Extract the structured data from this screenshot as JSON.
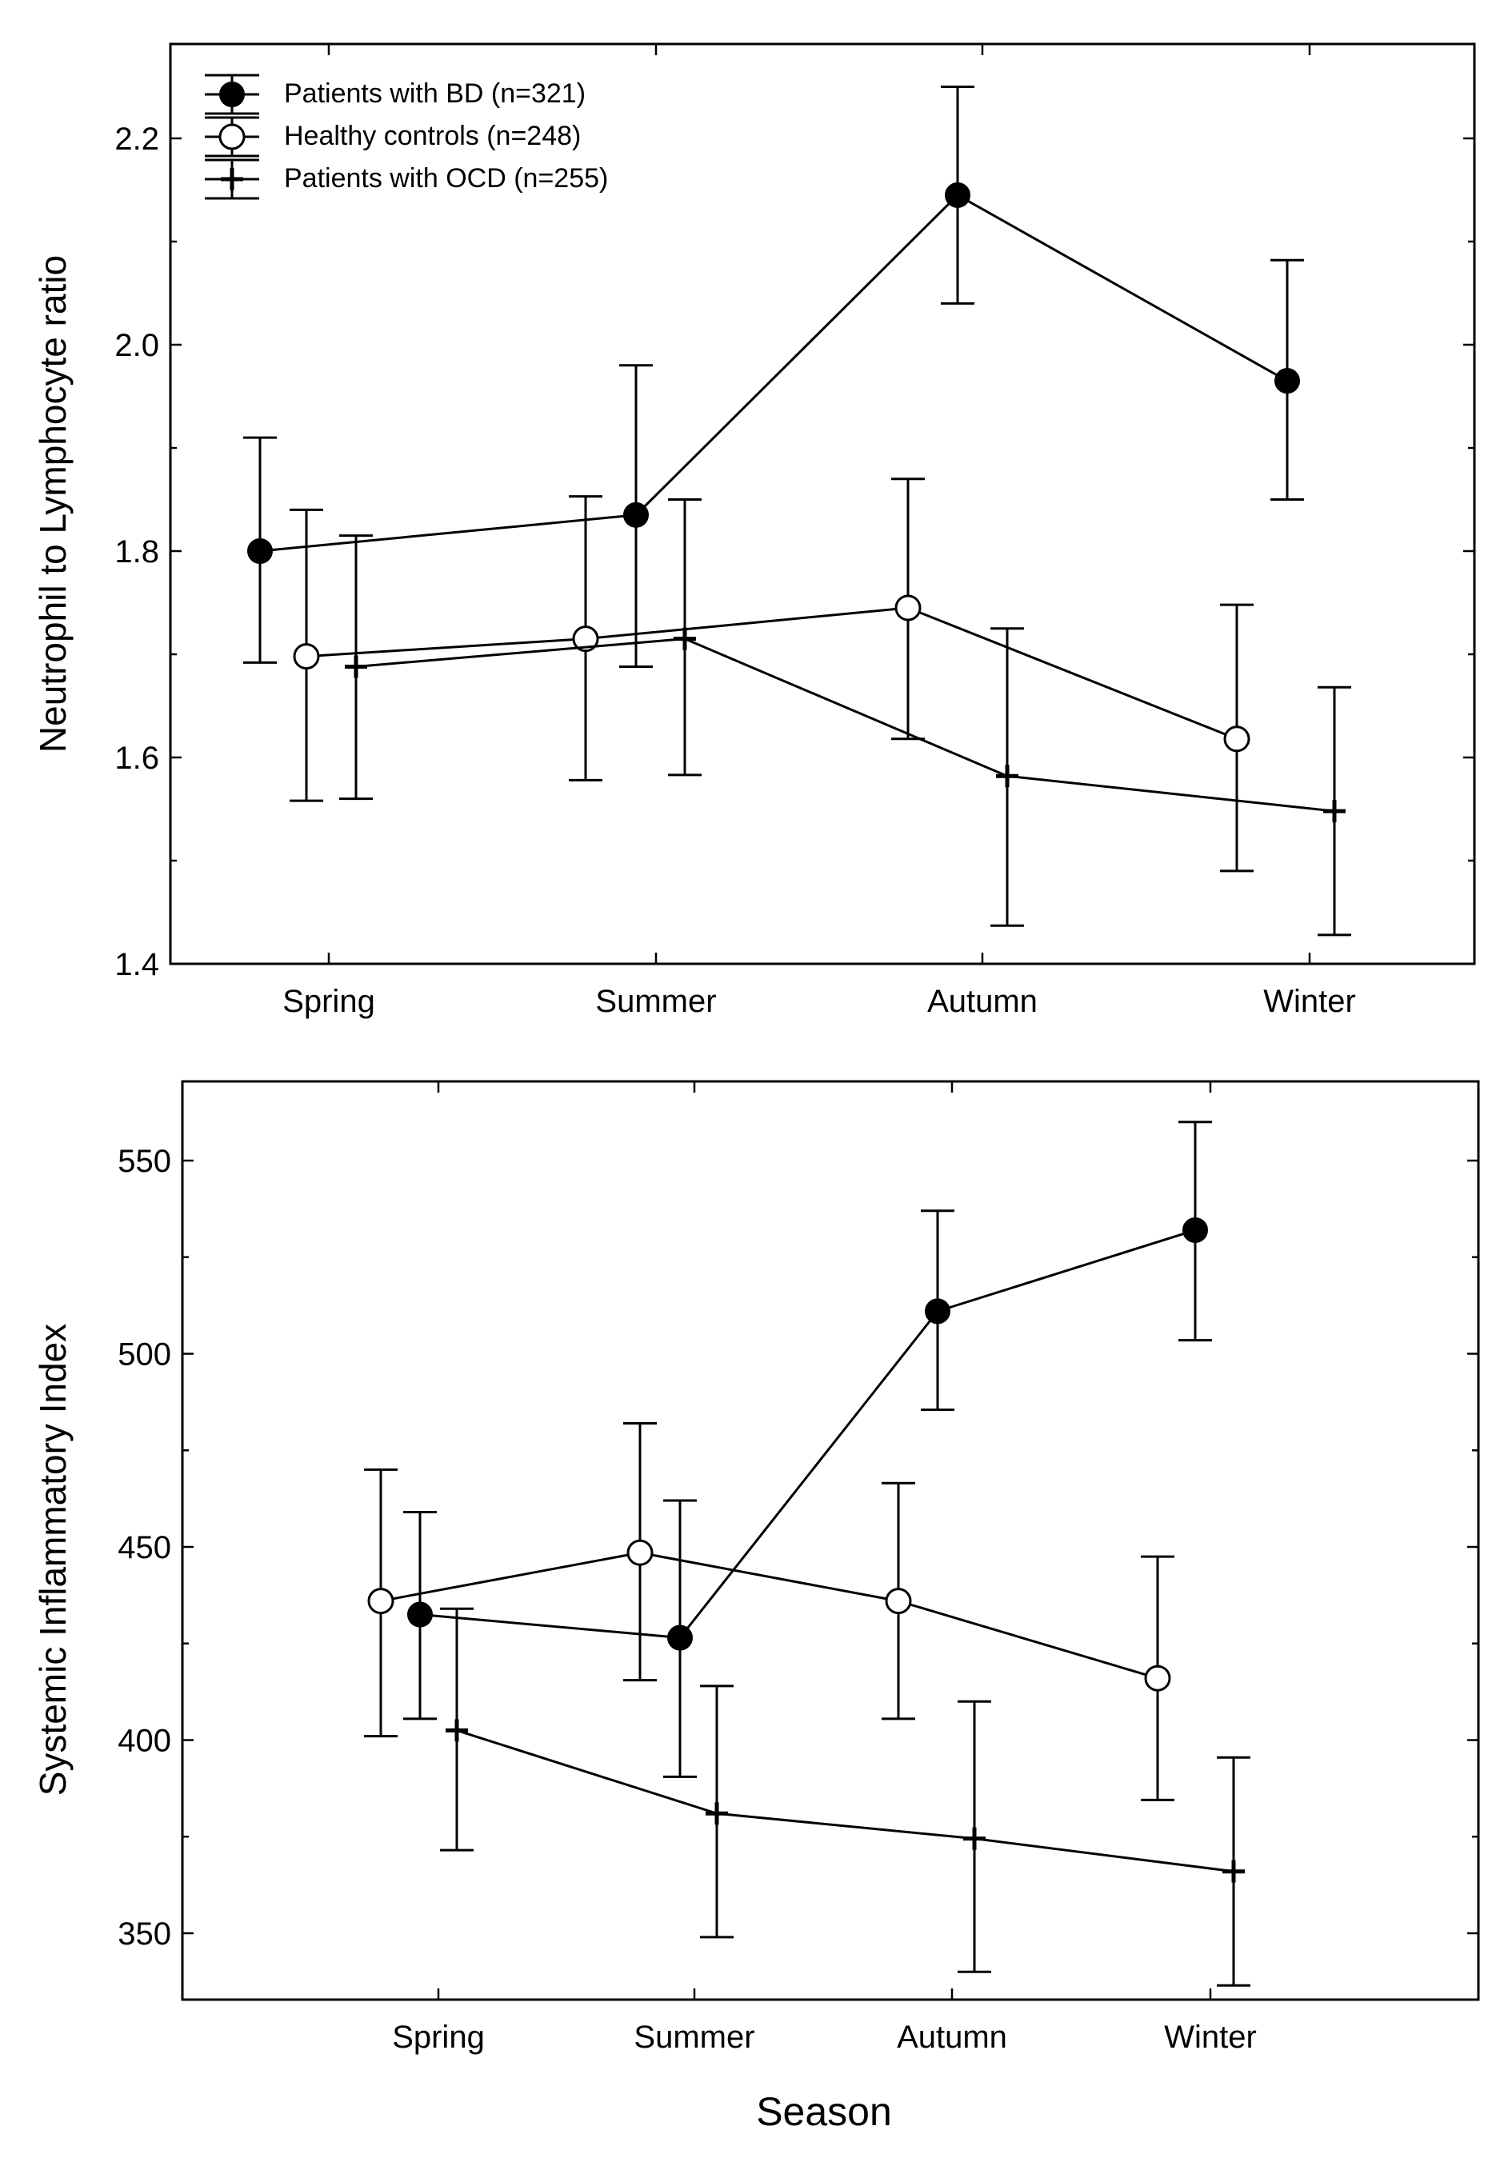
{
  "figure": {
    "xlabel": "Season"
  },
  "chart_data": [
    {
      "type": "line",
      "title": "",
      "xlabel": "",
      "ylabel": "Neutrophil to Lymphocyte ratio",
      "categories": [
        "Spring",
        "Summer",
        "Autumn",
        "Winter"
      ],
      "ylim": [
        1.4,
        2.3
      ],
      "yticks": [
        "1.4",
        "1.6",
        "1.8",
        "2.0",
        "2.2"
      ],
      "legend_position": "top-left",
      "series": [
        {
          "name": "Patients with BD (n=321)",
          "marker": "filled-circle",
          "values": [
            1.8,
            1.835,
            2.145,
            1.965
          ],
          "err_low": [
            1.692,
            1.688,
            2.04,
            1.85
          ],
          "err_high": [
            1.91,
            1.98,
            2.25,
            2.082
          ],
          "line_segments": [
            [
              0,
              1
            ],
            [
              1,
              2
            ],
            [
              2,
              3
            ]
          ]
        },
        {
          "name": "Healthy controls (n=248)",
          "marker": "open-circle",
          "values": [
            1.698,
            1.715,
            1.745,
            1.618
          ],
          "err_low": [
            1.558,
            1.578,
            1.618,
            1.49
          ],
          "err_high": [
            1.84,
            1.853,
            1.87,
            1.748
          ],
          "line_segments": [
            [
              0,
              1
            ],
            [
              1,
              2
            ],
            [
              2,
              3
            ]
          ]
        },
        {
          "name": "Patients with OCD (n=255)",
          "marker": "plus",
          "values": [
            1.688,
            1.715,
            1.582,
            1.548
          ],
          "err_low": [
            1.56,
            1.583,
            1.437,
            1.428
          ],
          "err_high": [
            1.815,
            1.85,
            1.725,
            1.668
          ],
          "line_segments": [
            [
              0,
              1
            ],
            [
              1,
              2
            ],
            [
              2,
              3
            ]
          ]
        }
      ]
    },
    {
      "type": "line",
      "title": "",
      "xlabel": "",
      "ylabel": "Systemic Inflammatory Index",
      "categories": [
        "Spring",
        "Summer",
        "Autumn",
        "Winter"
      ],
      "ylim": [
        330,
        565
      ],
      "yticks": [
        "350",
        "400",
        "450",
        "500",
        "550"
      ],
      "series": [
        {
          "name": "Patients with BD (n=321)",
          "marker": "filled-circle",
          "values": [
            432.5,
            426.5,
            511,
            532
          ],
          "err_low": [
            405.5,
            390.5,
            485.5,
            503.5
          ],
          "err_high": [
            459,
            462,
            537,
            560
          ],
          "line_segments": [
            [
              0,
              1
            ],
            [
              1,
              2
            ],
            [
              2,
              3
            ]
          ]
        },
        {
          "name": "Healthy controls (n=248)",
          "marker": "open-circle",
          "values": [
            436,
            448.5,
            436,
            416
          ],
          "err_low": [
            401,
            415.5,
            405.5,
            384.5
          ],
          "err_high": [
            470,
            482,
            466.5,
            447.5
          ],
          "line_segments": [
            [
              0,
              1
            ],
            [
              1,
              2
            ],
            [
              2,
              3
            ]
          ]
        },
        {
          "name": "Patients with OCD (n=255)",
          "marker": "plus",
          "values": [
            402.5,
            381,
            374.5,
            366
          ],
          "err_low": [
            371.5,
            349,
            340,
            336.5
          ],
          "err_high": [
            434,
            414,
            410,
            395.5
          ],
          "line_segments": [
            [
              0,
              1
            ],
            [
              1,
              2
            ],
            [
              2,
              3
            ]
          ]
        }
      ]
    }
  ]
}
